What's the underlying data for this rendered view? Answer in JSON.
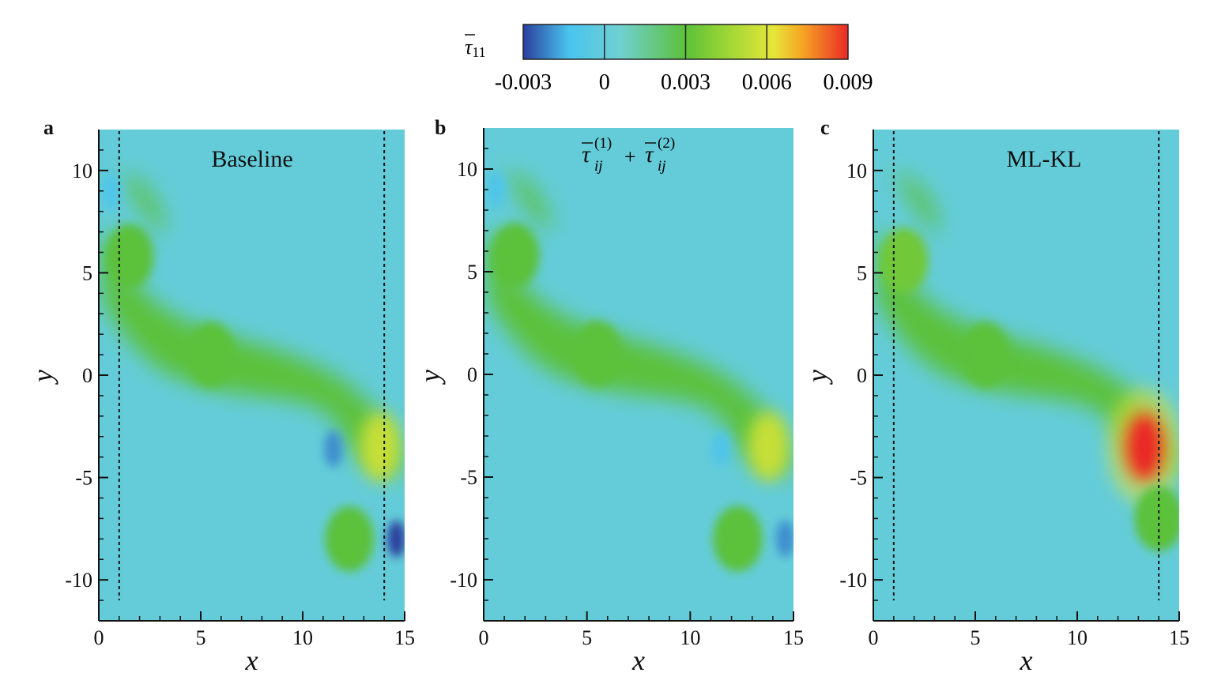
{
  "colorbar": {
    "label_symbol": "τ",
    "label_sub": "11",
    "ticks": [
      "-0.003",
      "0",
      "0.003",
      "0.006",
      "0.009"
    ],
    "tick_values": [
      -0.003,
      0,
      0.003,
      0.006,
      0.009
    ],
    "range": [
      -0.003,
      0.009
    ],
    "colors": [
      "#2b3f9e",
      "#49c3ee",
      "#70d0d0",
      "#5cc13a",
      "#8fd235",
      "#e6e63a",
      "#f6a423",
      "#ea2a27"
    ]
  },
  "panels": [
    {
      "label": "a",
      "title": "Baseline"
    },
    {
      "label": "b",
      "title": "",
      "title_math": {
        "symbol": "τ",
        "sub": "ij",
        "sup1": "(1)",
        "plus": "+",
        "sup2": "(2)"
      }
    },
    {
      "label": "c",
      "title": "ML-KL"
    }
  ],
  "axes": {
    "xlabel": "x",
    "ylabel": "y",
    "x_ticks": [
      "0",
      "5",
      "10",
      "15"
    ],
    "y_ticks": [
      "10",
      "5",
      "0",
      "-5",
      "-10"
    ]
  },
  "chart_data": {
    "type": "heatmap",
    "title": "",
    "xlabel": "x",
    "ylabel": "y",
    "xlim": [
      0,
      15
    ],
    "ylim": [
      -12,
      12
    ],
    "x_ticks": [
      0,
      5,
      10,
      15
    ],
    "y_ticks": [
      -10,
      -5,
      0,
      5,
      10
    ],
    "colorbar_label": "τ11",
    "colorbar_range": [
      -0.003,
      0.009
    ],
    "background_value": 0.0,
    "dashed_lines_x": [
      1,
      14
    ],
    "panels": [
      {
        "label": "a",
        "title": "Baseline",
        "dashed_lines_x": [
          1,
          14
        ],
        "features": [
          {
            "x": 5.5,
            "y": 1.0,
            "value": 0.003
          },
          {
            "x": 1.5,
            "y": 5.8,
            "value": 0.003
          },
          {
            "x": 13.8,
            "y": -3.5,
            "value": 0.0055
          },
          {
            "x": 12.3,
            "y": -8.0,
            "value": 0.003
          },
          {
            "x": 0.6,
            "y": 9.0,
            "value": -0.001
          },
          {
            "x": 11.5,
            "y": -3.6,
            "value": -0.002
          },
          {
            "x": 14.6,
            "y": -8.0,
            "value": -0.003
          }
        ]
      },
      {
        "label": "b",
        "title": "τij(1) + τij(2)",
        "dashed_lines_x": [],
        "features": [
          {
            "x": 5.5,
            "y": 1.0,
            "value": 0.003
          },
          {
            "x": 1.5,
            "y": 5.8,
            "value": 0.003
          },
          {
            "x": 13.8,
            "y": -3.5,
            "value": 0.0055
          },
          {
            "x": 12.3,
            "y": -8.0,
            "value": 0.003
          },
          {
            "x": 0.6,
            "y": 9.0,
            "value": -0.001
          },
          {
            "x": 11.5,
            "y": -3.6,
            "value": -0.001
          },
          {
            "x": 14.6,
            "y": -8.0,
            "value": -0.002
          }
        ]
      },
      {
        "label": "c",
        "title": "ML-KL",
        "dashed_lines_x": [
          1,
          14
        ],
        "features": [
          {
            "x": 5.5,
            "y": 1.0,
            "value": 0.003
          },
          {
            "x": 1.5,
            "y": 5.6,
            "value": 0.0035
          },
          {
            "x": 13.3,
            "y": -3.5,
            "value": 0.009
          },
          {
            "x": 14.0,
            "y": -7.0,
            "value": 0.003
          }
        ]
      }
    ]
  }
}
